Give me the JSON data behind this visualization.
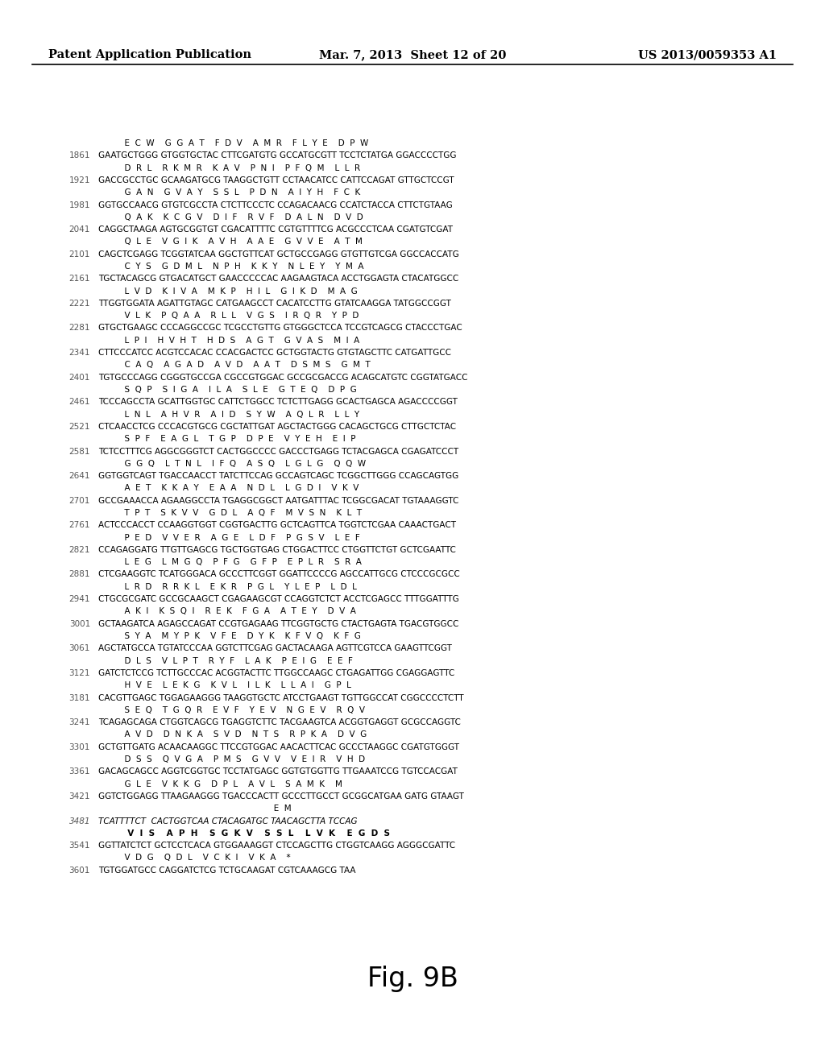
{
  "header_left": "Patent Application Publication",
  "header_center": "Mar. 7, 2013  Sheet 12 of 20",
  "header_right": "US 2013/0059353 A1",
  "figure_label": "Fig. 9B",
  "background_color": "#ffffff",
  "content": [
    {
      "type": "aa",
      "text": "          E  C  W    G  G  A  T    F  D  V    A  M  R    F  L  Y  E    D  P  W"
    },
    {
      "type": "dna",
      "num": "1861",
      "text": "GAATGCTGGG GTGGTGCTAC CTTCGATGTG GCCATGCGTT TCCTCTATGA GGACCCCTGG"
    },
    {
      "type": "aa",
      "text": "          D  R  L    R  K  M  R    K  A  V    P  N  I    P  F  Q  M    L  L  R"
    },
    {
      "type": "dna",
      "num": "1921",
      "text": "GACCGCCTGC GCAAGATGCG TAAGGCTGTT CCTAACATCC CATTCCAGAT GTTGCTCCGT"
    },
    {
      "type": "aa",
      "text": "          G  A  N    G  V  A  Y    S  S  L    P  D  N    A  I  Y  H    F  C  K"
    },
    {
      "type": "dna",
      "num": "1981",
      "text": "GGTGCCAACG GTGTCGCCTA CTCTTCCCTC CCAGACAACG CCATCTACCA CTTCTGTAAG"
    },
    {
      "type": "aa",
      "text": "          Q  A  K    K  C  G  V    D  I  F    R  V  F    D  A  L  N    D  V  D"
    },
    {
      "type": "dna",
      "num": "2041",
      "text": "CAGGCTAAGA AGTGCGGTGT CGACATTTTC CGTGTTTTCG ACGCCCTCAA CGATGTCGAT"
    },
    {
      "type": "aa",
      "text": "          Q  L  E    V  G  I  K    A  V  H    A  A  E    G  V  V  E    A  T  M"
    },
    {
      "type": "dna",
      "num": "2101",
      "text": "CAGCTCGAGG TCGGTATCAA GGCTGTTCAT GCTGCCGAGG GTGTTGTCGA GGCCACCATG"
    },
    {
      "type": "aa",
      "text": "          C  Y  S    G  D  M  L    N  P  H    K  K  Y    N  L  E  Y    Y  M  A"
    },
    {
      "type": "dna",
      "num": "2161",
      "text": "TGCTACAGCG GTGACATGCT GAACCCCCAC AAGAAGTACA ACCTGGAGTA CTACATGGCC"
    },
    {
      "type": "aa",
      "text": "          L  V  D    K  I  V  A    M  K  P    H  I  L    G  I  K  D    M  A  G"
    },
    {
      "type": "dna",
      "num": "2221",
      "text": "TTGGTGGATA AGATTGTAGC CATGAAGCCT CACATCCTTG GTATCAAGGA TATGGCCGGT"
    },
    {
      "type": "aa",
      "text": "          V  L  K    P  Q  A  A    R  L  L    V  G  S    I  R  Q  R    Y  P  D"
    },
    {
      "type": "dna",
      "num": "2281",
      "text": "GTGCTGAAGC CCCAGGCCGC TCGCCTGTTG GTGGGCTCCA TCCGTCAGCG CTACCCTGAC"
    },
    {
      "type": "aa",
      "text": "          L  P  I    H  V  H  T    H  D  S    A  G  T    G  V  A  S    M  I  A"
    },
    {
      "type": "dna",
      "num": "2341",
      "text": "CTTCCCATCC ACGTCCACAC CCACGACTCC GCTGGTACTG GTGTAGCTTC CATGATTGCC"
    },
    {
      "type": "aa",
      "text": "          C  A  Q    A  G  A  D    A  V  D    A  A  T    D  S  M  S    G  M  T"
    },
    {
      "type": "dna",
      "num": "2401",
      "text": "TGTGCCCAGG CGGGTGCCGA CGCCGTGGAC GCCGCGACCG ACAGCATGTC CGGTATGACC"
    },
    {
      "type": "aa",
      "text": "          S  Q  P    S  I  G  A    I  L  A    S  L  E    G  T  E  Q    D  P  G"
    },
    {
      "type": "dna",
      "num": "2461",
      "text": "TCCCAGCCTA GCATTGGTGC CATTCTGGCC TCTCTTGAGG GCACTGAGCA AGACCCCGGT"
    },
    {
      "type": "aa",
      "text": "          L  N  L    A  H  V  R    A  I  D    S  Y  W    A  Q  L  R    L  L  Y"
    },
    {
      "type": "dna",
      "num": "2521",
      "text": "CTCAACCTCG CCCACGTGCG CGCTATTGAT AGCTACTGGG CACAGCTGCG CTTGCTCTAC"
    },
    {
      "type": "aa",
      "text": "          S  P  F    E  A  G  L    T  G  P    D  P  E    V  Y  E  H    E  I  P"
    },
    {
      "type": "dna",
      "num": "2581",
      "text": "TCTCCTTTCG AGGCGGGTCT CACTGGCCCC GACCCTGAGG TCTACGAGCA CGAGATCCCT"
    },
    {
      "type": "aa",
      "text": "          G  G  Q    L  T  N  L    I  F  Q    A  S  Q    L  G  L  G    Q  Q  W"
    },
    {
      "type": "dna",
      "num": "2641",
      "text": "GGTGGTCAGT TGACCAACCT TATCTTCCAG GCCAGTCAGC TCGGCTTGGG CCAGCAGTGG"
    },
    {
      "type": "aa",
      "text": "          A  E  T    K  K  A  Y    E  A  A    N  D  L    L  G  D  I    V  K  V"
    },
    {
      "type": "dna",
      "num": "2701",
      "text": "GCCGAAACCA AGAAGGCCTA TGAGGCGGCT AATGATTTAC TCGGCGACAT TGTAAAGGTC"
    },
    {
      "type": "aa",
      "text": "          T  P  T    S  K  V  V    G  D  L    A  Q  F    M  V  S  N    K  L  T"
    },
    {
      "type": "dna",
      "num": "2761",
      "text": "ACTCCCACCT CCAAGGTGGT CGGTGACTTG GCTCAGTTCA TGGTCTCGAA CAAACTGACT"
    },
    {
      "type": "aa",
      "text": "          P  E  D    V  V  E  R    A  G  E    L  D  F    P  G  S  V    L  E  F"
    },
    {
      "type": "dna",
      "num": "2821",
      "text": "CCAGAGGATG TTGTTGAGCG TGCTGGTGAG CTGGACTTCC CTGGTTCTGT GCTCGAATTC"
    },
    {
      "type": "aa",
      "text": "          L  E  G    L  M  G  Q    P  F  G    G  F  P    E  P  L  R    S  R  A"
    },
    {
      "type": "dna",
      "num": "2881",
      "text": "CTCGAAGGTC TCATGGGACA GCCCTTCGGT GGATTCCCCG AGCCATTGCG CTCCCGCGCC"
    },
    {
      "type": "aa",
      "text": "          L  R  D    R  R  K  L    E  K  R    P  G  L    Y  L  E  P    L  D  L"
    },
    {
      "type": "dna",
      "num": "2941",
      "text": "CTGCGCGATC GCCGCAAGCT CGAGAAGCGT CCAGGTCTCT ACCTCGAGCC TTTGGATTTG"
    },
    {
      "type": "aa",
      "text": "          A  K  I    K  S  Q  I    R  E  K    F  G  A    A  T  E  Y    D  V  A"
    },
    {
      "type": "dna",
      "num": "3001",
      "text": "GCTAAGATCA AGAGCCAGAT CCGTGAGAAG TTCGGTGCTG CTACTGAGTA TGACGTGGCC"
    },
    {
      "type": "aa",
      "text": "          S  Y  A    M  Y  P  K    V  F  E    D  Y  K    K  F  V  Q    K  F  G"
    },
    {
      "type": "dna",
      "num": "3061",
      "text": "AGCTATGCCA TGTATCCCAA GGTCTTCGAG GACTACAAGA AGTTCGTCCA GAAGTTCGGT"
    },
    {
      "type": "aa",
      "text": "          D  L  S    V  L  P  T    R  Y  F    L  A  K    P  E  I  G    E  E  F"
    },
    {
      "type": "dna",
      "num": "3121",
      "text": "GATCTCTCCG TCTTGCCCAC ACGGTACTTC TTGGCCAAGC CTGAGATTGG CGAGGAGTTC"
    },
    {
      "type": "aa",
      "text": "          H  V  E    L  E  K  G    K  V  L    I  L  K    L  L  A  I    G  P  L"
    },
    {
      "type": "dna",
      "num": "3181",
      "text": "CACGTTGAGC TGGAGAAGGG TAAGGTGCTC ATCCTGAAGT TGTTGGCCAT CGGCCCCTCTT"
    },
    {
      "type": "aa",
      "text": "          S  E  Q    T  G  Q  R    E  V  F    Y  E  V    N  G  E  V    R  Q  V"
    },
    {
      "type": "dna",
      "num": "3241",
      "text": "TCAGAGCAGA CTGGTCAGCG TGAGGTCTTC TACGAAGTCA ACGGTGAGGT GCGCCAGGTC"
    },
    {
      "type": "aa",
      "text": "          A  V  D    D  N  K  A    S  V  D    N  T  S    R  P  K  A    D  V  G"
    },
    {
      "type": "dna",
      "num": "3301",
      "text": "GCTGTTGATG ACAACAAGGC TTCCGTGGAC AACACTTCAC GCCCTAAGGC CGATGTGGGT"
    },
    {
      "type": "aa",
      "text": "          D  S  S    Q  V  G  A    P  M  S    G  V  V    V  E  I  R    V  H  D"
    },
    {
      "type": "dna",
      "num": "3361",
      "text": "GACAGCAGCC AGGTCGGTGC TCCTATGAGC GGTGTGGTTG TTGAAATCCG TGTCCACGAT"
    },
    {
      "type": "aa",
      "text": "          G  L  E    V  K  K  G    D  P  L    A  V  L    S  A  M  K    M"
    },
    {
      "type": "dna",
      "num": "3421",
      "text": "GGTCTGGAGG TTAAGAAGGG TGACCCACTT GCCCTTGCCT GCGGCATGAA GATG GTAAGT"
    },
    {
      "type": "aa",
      "text": "                                                                   E  M"
    },
    {
      "type": "dna_italic",
      "num": "3481",
      "text": "TCATTTTCT  CACTGGTCAA CTACAGATGC TAACAGCTTA TCCAG"
    },
    {
      "type": "aa_bold",
      "text": "          V  I  S    A  P  H    S  G  K  V    S  S  L    L  V  K    E  G  D  S"
    },
    {
      "type": "dna",
      "num": "3541",
      "text": "GGTTATCTCT GCTCCTCACA GTGGAAAGGT CTCCAGCTTG CTGGTCAAGG AGGGCGATTC"
    },
    {
      "type": "aa",
      "text": "          V  D  G    Q  D  L    V  C  K  I    V  K  A    *"
    },
    {
      "type": "dna",
      "num": "3601",
      "text": "TGTGGATGCC CAGGATCTCG TCTGCAAGAT CGTCAAAGCG TAA"
    }
  ]
}
